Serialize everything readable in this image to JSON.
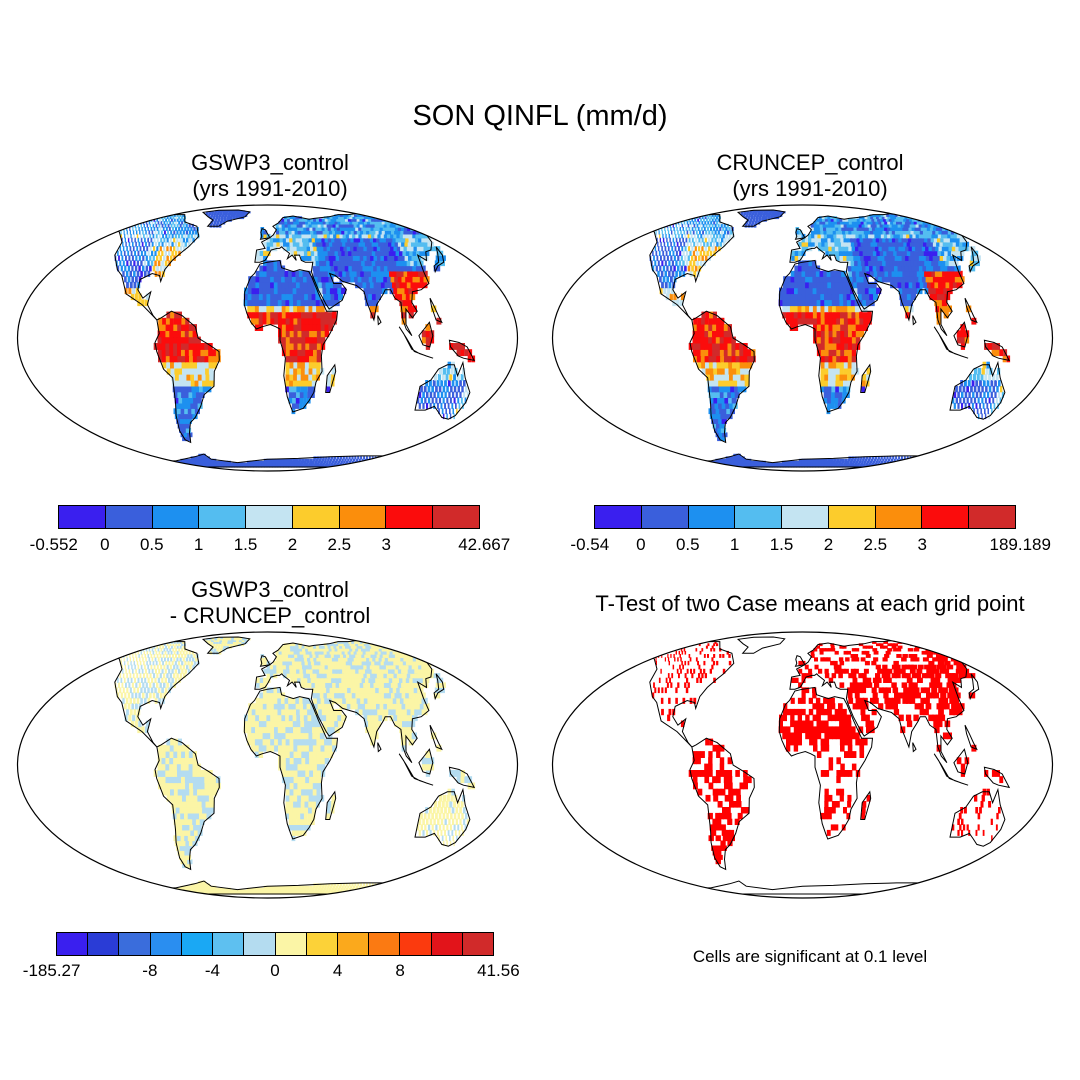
{
  "title": "SON QINFL (mm/d)",
  "panels": {
    "top_left": {
      "title_line1": "GSWP3_control",
      "title_line2": "(yrs 1991-2010)"
    },
    "top_right": {
      "title_line1": "CRUNCEP_control",
      "title_line2": "(yrs 1991-2010)"
    },
    "bottom_left": {
      "title_line1": "GSWP3_control",
      "title_line2": "- CRUNCEP_control"
    },
    "bottom_right": {
      "title_line1": "T-Test of two Case means at each grid point"
    }
  },
  "colorbars": {
    "top_left": {
      "colors": [
        "#3a1fef",
        "#3a5fdc",
        "#1d90f0",
        "#54bdf0",
        "#c4e4f2",
        "#fccc2c",
        "#fb8e0c",
        "#fb0c0c",
        "#d12a2a"
      ],
      "labels": [
        "-0.552",
        "0",
        "0.5",
        "1",
        "1.5",
        "2",
        "2.5",
        "3",
        "42.667"
      ]
    },
    "top_right": {
      "colors": [
        "#3a1fef",
        "#3a5fdc",
        "#1d90f0",
        "#54bdf0",
        "#c4e4f2",
        "#fccc2c",
        "#fb8e0c",
        "#fb0c0c",
        "#d12a2a"
      ],
      "labels": [
        "-0.54",
        "0",
        "0.5",
        "1",
        "1.5",
        "2",
        "2.5",
        "3",
        "189.189"
      ]
    },
    "bottom_left": {
      "colors": [
        "#3a1fef",
        "#2a3cd6",
        "#3a6ddc",
        "#2a8ef0",
        "#1aa8f4",
        "#5ec0f0",
        "#b4dcf0",
        "#fbf5a6",
        "#fcd238",
        "#fba91c",
        "#fb7a12",
        "#fb3a0e",
        "#e2141a",
        "#d12a2a"
      ],
      "labels": [
        "-185.27",
        "-8",
        "-4",
        "0",
        "4",
        "8",
        "41.56"
      ]
    }
  },
  "significance_note": "Cells are significant at 0.1 level",
  "colors": {
    "ocean": "#ffffff",
    "sig_red": "#ff0000",
    "diff_base": "#fbf5a6",
    "diff_light_blue": "#b4dcf0"
  }
}
